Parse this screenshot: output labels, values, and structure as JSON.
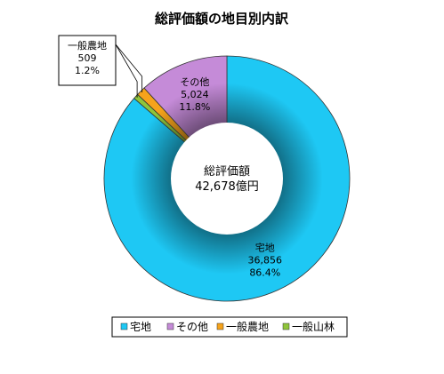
{
  "chart_data": {
    "type": "pie",
    "variant": "donut",
    "title": "総評価額の地目別内訳",
    "center_label": "総評価額",
    "center_value": "42,678億円",
    "total": 42678,
    "unit": "億円",
    "slices": [
      {
        "name": "宅地",
        "value": 36856,
        "value_label": "36,856",
        "percent": "86.4%",
        "color": "#1ec8f4",
        "callout": false
      },
      {
        "name": "一般山林",
        "value": 288,
        "value_label": "288",
        "percent": "0.7%",
        "color": "#8fc53a",
        "callout": true
      },
      {
        "name": "一般農地",
        "value": 509,
        "value_label": "509",
        "percent": "1.2%",
        "color": "#f6a31b",
        "callout": true
      },
      {
        "name": "その他",
        "value": 5024,
        "value_label": "5,024",
        "percent": "11.8%",
        "color": "#c58bd8",
        "callout": false
      }
    ],
    "legend": [
      "宅地",
      "その他",
      "一般農地",
      "一般山林"
    ],
    "legend_position": "bottom"
  }
}
